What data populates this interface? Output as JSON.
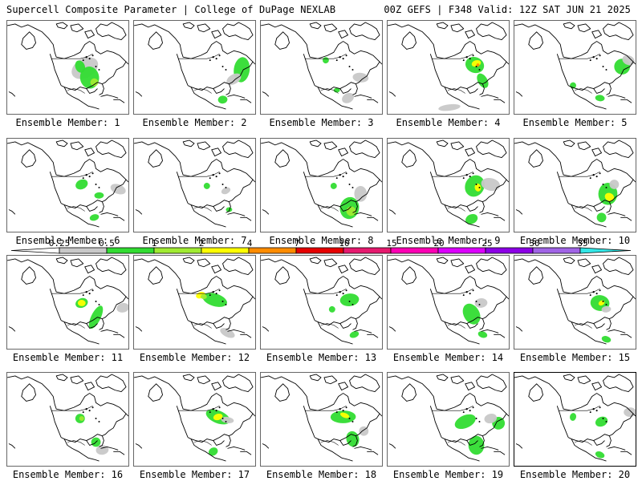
{
  "header": {
    "left_title": "Supercell Composite Parameter | College of DuPage NEXLAB",
    "right_title": "00Z GEFS | F348 Valid: 12Z SAT JUN 21 2025"
  },
  "colorbar": {
    "ticks": [
      "0.25",
      "0.5",
      "1",
      "2",
      "4",
      "7",
      "10",
      "15",
      "20",
      "25",
      "30",
      "35"
    ],
    "colors": [
      "#c8c8c8",
      "#32dc32",
      "#a0eb32",
      "#ffff00",
      "#ff8c00",
      "#e60000",
      "#e6196e",
      "#ff00b4",
      "#dc00ff",
      "#8c00e6",
      "#a064e6",
      "#32e6e6"
    ]
  },
  "members": [
    {
      "label": "Ensemble Member: 1"
    },
    {
      "label": "Ensemble Member: 2"
    },
    {
      "label": "Ensemble Member: 3"
    },
    {
      "label": "Ensemble Member: 4"
    },
    {
      "label": "Ensemble Member: 5"
    },
    {
      "label": "Ensemble Member: 6"
    },
    {
      "label": "Ensemble Member: 7"
    },
    {
      "label": "Ensemble Member: 8"
    },
    {
      "label": "Ensemble Member: 9"
    },
    {
      "label": "Ensemble Member: 10"
    },
    {
      "label": "Ensemble Member: 11"
    },
    {
      "label": "Ensemble Member: 12"
    },
    {
      "label": "Ensemble Member: 13"
    },
    {
      "label": "Ensemble Member: 14"
    },
    {
      "label": "Ensemble Member: 15"
    },
    {
      "label": "Ensemble Member: 16"
    },
    {
      "label": "Ensemble Member: 17"
    },
    {
      "label": "Ensemble Member: 18"
    },
    {
      "label": "Ensemble Member: 19"
    },
    {
      "label": "Ensemble Member: 20"
    }
  ]
}
